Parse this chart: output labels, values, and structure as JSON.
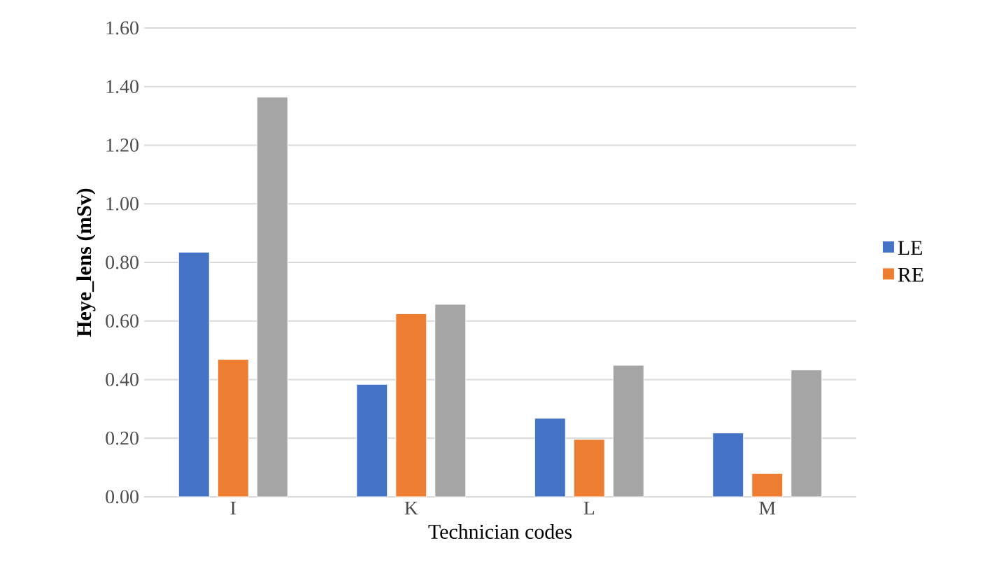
{
  "chart_data": {
    "type": "bar",
    "xlabel": "Technician codes",
    "ylabel": "Heye_lens (mSv)",
    "categories": [
      "I",
      "K",
      "L",
      "M"
    ],
    "series": [
      {
        "name": "LE",
        "color": "#4472c4",
        "values": [
          0.835,
          0.384,
          0.268,
          0.218
        ]
      },
      {
        "name": "RE",
        "color": "#ed7d31",
        "values": [
          0.469,
          0.625,
          0.196,
          0.08
        ]
      },
      {
        "color": "#a5a5a5",
        "values": [
          1.364,
          0.657,
          0.449,
          0.433
        ]
      }
    ],
    "ylim": [
      0,
      1.6
    ],
    "yticks": [
      {
        "value": 0,
        "label": "0.00"
      },
      {
        "value": 0.2,
        "label": "0.20"
      },
      {
        "value": 0.4,
        "label": "0.40"
      },
      {
        "value": 0.6,
        "label": "0.60"
      },
      {
        "value": 0.8,
        "label": "0.80"
      },
      {
        "value": 1.0,
        "label": "1.00"
      },
      {
        "value": 1.2,
        "label": "1.20"
      },
      {
        "value": 1.4,
        "label": "1.40"
      },
      {
        "value": 1.6,
        "label": "1.60"
      }
    ],
    "grid": "y",
    "legend": "right"
  }
}
